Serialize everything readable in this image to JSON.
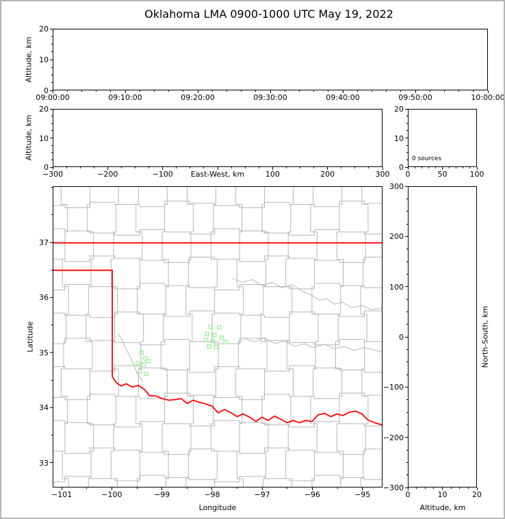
{
  "figure": {
    "title": "Oklahoma LMA 0900-1000 UTC May 19, 2022"
  },
  "colors": {
    "axis": "#000000",
    "county": "#b5b5b5",
    "river": "#b5b5b5",
    "state_border": "#ff0000",
    "station": "#90ee90",
    "frame": "#b6b6b6"
  },
  "labels": {
    "altitude_km": "Altitude, km",
    "east_west_km": "East-West, km",
    "latitude": "Latitude",
    "longitude": "Longitude",
    "north_south_km": "North-South, km",
    "sources_annotation": "0 sources"
  },
  "chart_data": [
    {
      "id": "time_height",
      "type": "scatter",
      "ylabel": "Altitude, km",
      "xlim": [
        0,
        3600
      ],
      "ylim": [
        0,
        20
      ],
      "xticks": [
        {
          "v": 0,
          "label": "09:00:00"
        },
        {
          "v": 600,
          "label": "09:10:00"
        },
        {
          "v": 1200,
          "label": "09:20:00"
        },
        {
          "v": 1800,
          "label": "09:30:00"
        },
        {
          "v": 2400,
          "label": "09:40:00"
        },
        {
          "v": 3000,
          "label": "09:50:00"
        },
        {
          "v": 3600,
          "label": "10:00:00"
        }
      ],
      "xminor_step": 120,
      "yticks": [
        {
          "v": 0,
          "label": "0"
        },
        {
          "v": 10,
          "label": "10"
        },
        {
          "v": 20,
          "label": "20"
        }
      ],
      "yminor_step": 2.5,
      "points": []
    },
    {
      "id": "ew_height",
      "type": "scatter",
      "xlabel": "East-West, km",
      "ylabel": "Altitude, km",
      "xlim": [
        -300,
        300
      ],
      "ylim": [
        0,
        20
      ],
      "xticks": [
        {
          "v": -300,
          "label": "−300"
        },
        {
          "v": -200,
          "label": "−200"
        },
        {
          "v": -100,
          "label": "−100"
        },
        {
          "v": 0,
          "label": ""
        },
        {
          "v": 100,
          "label": "100"
        },
        {
          "v": 200,
          "label": "200"
        },
        {
          "v": 300,
          "label": "300"
        }
      ],
      "xminor_step": 25,
      "yticks": [
        {
          "v": 0,
          "label": "0"
        },
        {
          "v": 10,
          "label": "10"
        },
        {
          "v": 20,
          "label": "20"
        }
      ],
      "yminor_step": 2.5,
      "points": []
    },
    {
      "id": "alt_stats",
      "type": "scatter",
      "annotation": "0 sources",
      "xlim": [
        0,
        100
      ],
      "ylim": [
        0,
        20
      ],
      "xticks": [
        {
          "v": 0,
          "label": "0"
        },
        {
          "v": 50,
          "label": "50"
        },
        {
          "v": 100,
          "label": "100"
        }
      ],
      "xminor_step": 10,
      "yticks": [
        {
          "v": 0,
          "label": "0"
        },
        {
          "v": 10,
          "label": "10"
        },
        {
          "v": 20,
          "label": "20"
        }
      ],
      "yminor_step": 2.5,
      "points": []
    },
    {
      "id": "map",
      "type": "scatter",
      "xlabel": "Longitude",
      "ylabel": "Latitude",
      "xlim": [
        -101.18,
        -94.6
      ],
      "ylim": [
        32.55,
        38.02
      ],
      "xticks": [
        {
          "v": -101,
          "label": "−101"
        },
        {
          "v": -100,
          "label": "−100"
        },
        {
          "v": -99,
          "label": "−99"
        },
        {
          "v": -98,
          "label": "−98"
        },
        {
          "v": -97,
          "label": "−97"
        },
        {
          "v": -96,
          "label": "−96"
        },
        {
          "v": -95,
          "label": "−95"
        }
      ],
      "xminor_step": 0.5,
      "yticks": [
        {
          "v": 33,
          "label": "33"
        },
        {
          "v": 34,
          "label": "34"
        },
        {
          "v": 35,
          "label": "35"
        },
        {
          "v": 36,
          "label": "36"
        },
        {
          "v": 37,
          "label": "37"
        }
      ],
      "yminor_step": 0.5,
      "stations": [
        [
          -98.03,
          35.47
        ],
        [
          -97.86,
          35.46
        ],
        [
          -98.1,
          35.34
        ],
        [
          -97.95,
          35.32
        ],
        [
          -98.12,
          35.23
        ],
        [
          -97.99,
          35.21
        ],
        [
          -97.81,
          35.27
        ],
        [
          -98.06,
          35.11
        ],
        [
          -97.92,
          35.1
        ],
        [
          -97.73,
          35.19
        ],
        [
          -99.41,
          35.0
        ],
        [
          -99.34,
          34.89
        ],
        [
          -99.49,
          34.8
        ],
        [
          -99.37,
          34.78
        ],
        [
          -99.27,
          34.84
        ],
        [
          -99.44,
          34.66
        ],
        [
          -99.32,
          34.61
        ]
      ]
    },
    {
      "id": "ns_height",
      "type": "scatter",
      "xlabel": "Altitude, km",
      "ylabel": "North-South, km",
      "xlim": [
        0,
        20
      ],
      "ylim": [
        -300,
        300
      ],
      "xticks": [
        {
          "v": 0,
          "label": "0"
        },
        {
          "v": 10,
          "label": "10"
        },
        {
          "v": 20,
          "label": "20"
        }
      ],
      "xminor_step": 2.5,
      "yticks": [
        {
          "v": 300,
          "label": "300"
        },
        {
          "v": 200,
          "label": "200"
        },
        {
          "v": 100,
          "label": "100"
        },
        {
          "v": 0,
          "label": "0"
        },
        {
          "v": -100,
          "label": "−100"
        },
        {
          "v": -200,
          "label": "−200"
        },
        {
          "v": -300,
          "label": "−300"
        }
      ],
      "yminor_step": 25,
      "points": []
    }
  ],
  "map_geo": {
    "state_border": [
      [
        [
          -101.18,
          37.0
        ],
        [
          -94.6,
          37.0
        ]
      ],
      [
        [
          -101.18,
          36.5
        ],
        [
          -100.0,
          36.5
        ],
        [
          -100.0,
          34.56
        ],
        [
          -99.92,
          34.45
        ],
        [
          -99.82,
          34.39
        ],
        [
          -99.72,
          34.43
        ],
        [
          -99.6,
          34.37
        ],
        [
          -99.48,
          34.4
        ],
        [
          -99.36,
          34.33
        ],
        [
          -99.25,
          34.21
        ],
        [
          -99.13,
          34.21
        ],
        [
          -99.0,
          34.16
        ],
        [
          -98.87,
          34.13
        ],
        [
          -98.75,
          34.14
        ],
        [
          -98.62,
          34.16
        ],
        [
          -98.5,
          34.07
        ],
        [
          -98.38,
          34.13
        ],
        [
          -98.25,
          34.09
        ],
        [
          -98.12,
          34.06
        ],
        [
          -98.0,
          34.02
        ],
        [
          -97.88,
          33.9
        ],
        [
          -97.75,
          33.96
        ],
        [
          -97.62,
          33.9
        ],
        [
          -97.5,
          33.83
        ],
        [
          -97.38,
          33.88
        ],
        [
          -97.25,
          33.82
        ],
        [
          -97.12,
          33.74
        ],
        [
          -97.0,
          33.82
        ],
        [
          -96.88,
          33.76
        ],
        [
          -96.75,
          33.84
        ],
        [
          -96.62,
          33.78
        ],
        [
          -96.5,
          33.72
        ],
        [
          -96.38,
          33.76
        ],
        [
          -96.25,
          33.72
        ],
        [
          -96.12,
          33.76
        ],
        [
          -96.0,
          33.74
        ],
        [
          -95.88,
          33.86
        ],
        [
          -95.75,
          33.89
        ],
        [
          -95.62,
          33.83
        ],
        [
          -95.5,
          33.88
        ],
        [
          -95.38,
          33.85
        ],
        [
          -95.25,
          33.91
        ],
        [
          -95.12,
          33.93
        ],
        [
          -95.0,
          33.88
        ],
        [
          -94.88,
          33.77
        ],
        [
          -94.75,
          33.72
        ],
        [
          -94.6,
          33.68
        ]
      ]
    ],
    "rivers": [
      [
        [
          -97.35,
          35.25
        ],
        [
          -97.15,
          35.2
        ],
        [
          -96.95,
          35.27
        ],
        [
          -96.75,
          35.16
        ],
        [
          -96.55,
          35.21
        ],
        [
          -96.35,
          35.11
        ],
        [
          -96.15,
          35.16
        ],
        [
          -95.95,
          35.09
        ],
        [
          -95.75,
          35.15
        ],
        [
          -95.55,
          35.07
        ],
        [
          -95.35,
          35.11
        ],
        [
          -95.15,
          35.04
        ],
        [
          -94.95,
          35.09
        ],
        [
          -94.6,
          35.01
        ]
      ],
      [
        [
          -97.6,
          36.35
        ],
        [
          -97.4,
          36.28
        ],
        [
          -97.2,
          36.33
        ],
        [
          -97.0,
          36.22
        ],
        [
          -96.8,
          36.28
        ],
        [
          -96.6,
          36.18
        ],
        [
          -96.4,
          36.24
        ],
        [
          -96.2,
          36.12
        ],
        [
          -96.0,
          36.04
        ],
        [
          -95.85,
          35.95
        ],
        [
          -95.7,
          35.98
        ],
        [
          -95.55,
          35.88
        ],
        [
          -95.4,
          35.92
        ],
        [
          -95.2,
          35.82
        ],
        [
          -95.0,
          35.86
        ],
        [
          -94.8,
          35.78
        ],
        [
          -94.6,
          35.81
        ]
      ],
      [
        [
          -99.88,
          35.35
        ],
        [
          -99.78,
          35.18
        ],
        [
          -99.7,
          35.02
        ],
        [
          -99.62,
          34.88
        ],
        [
          -99.55,
          34.72
        ],
        [
          -99.47,
          34.58
        ],
        [
          -99.38,
          34.46
        ]
      ]
    ],
    "county_grid": {
      "columns": [
        -100.95,
        -100.45,
        -99.95,
        -99.45,
        -98.95,
        -98.45,
        -97.95,
        -97.45,
        -96.95,
        -96.45,
        -95.95,
        -95.45,
        -94.95
      ],
      "rows": [
        32.7,
        33.2,
        33.7,
        34.2,
        34.7,
        35.2,
        35.7,
        36.2,
        36.7,
        37.2,
        37.7
      ],
      "col_jog": 0.025,
      "row_jog": 0.02
    }
  }
}
